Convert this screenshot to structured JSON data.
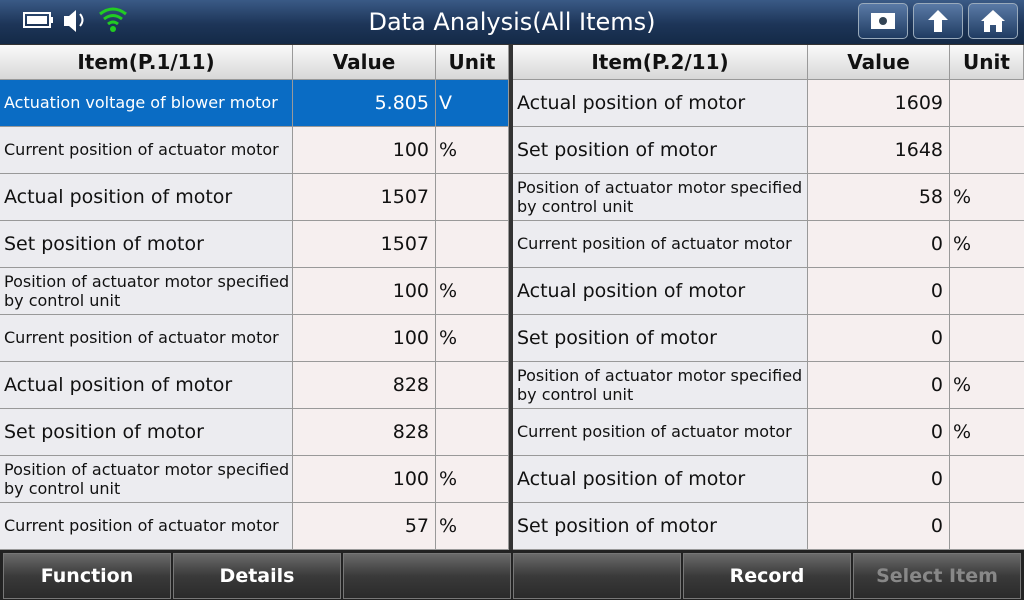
{
  "header": {
    "title": "Data Analysis(All Items)"
  },
  "tables": [
    {
      "columns": [
        "Item(P.1/11)",
        "Value",
        "Unit"
      ],
      "rows": [
        {
          "item": "Actuation voltage of blower motor",
          "value": 5.805,
          "unit": "V"
        },
        {
          "item": "Current position of actuator motor",
          "value": 100,
          "unit": "%"
        },
        {
          "item": "Actual position of motor",
          "value": 1507
        },
        {
          "item": "Set position of motor",
          "value": 1507
        },
        {
          "item": "Position of actuator motor specified by control unit",
          "value": 100,
          "unit": "%"
        },
        {
          "item": "Current position of actuator motor",
          "value": 100,
          "unit": "%"
        },
        {
          "item": "Actual position of motor",
          "value": 828
        },
        {
          "item": "Set position of motor",
          "value": 828
        },
        {
          "item": "Position of actuator motor specified by control unit",
          "value": 100,
          "unit": "%"
        },
        {
          "item": "Current position of actuator motor",
          "value": 57,
          "unit": "%"
        }
      ]
    },
    {
      "columns": [
        "Item(P.2/11)",
        "Value",
        "Unit"
      ],
      "rows": [
        {
          "item": "Actual position of motor",
          "value": 1609
        },
        {
          "item": "Set position of motor",
          "value": 1648
        },
        {
          "item": "Position of actuator motor specified by control unit",
          "value": 58,
          "unit": "%"
        },
        {
          "item": "Current position of actuator motor",
          "value": 0,
          "unit": "%"
        },
        {
          "item": "Actual position of motor",
          "value": 0
        },
        {
          "item": "Set position of motor",
          "value": 0
        },
        {
          "item": "Position of actuator motor specified by control unit",
          "value": 0,
          "unit": "%"
        },
        {
          "item": "Current position of actuator motor",
          "value": 0,
          "unit": "%"
        },
        {
          "item": "Actual position of motor",
          "value": 0
        },
        {
          "item": "Set position of motor",
          "value": 0
        }
      ]
    }
  ],
  "footer": {
    "buttons": [
      "Function",
      "Details",
      "Record",
      "Select Item"
    ]
  }
}
